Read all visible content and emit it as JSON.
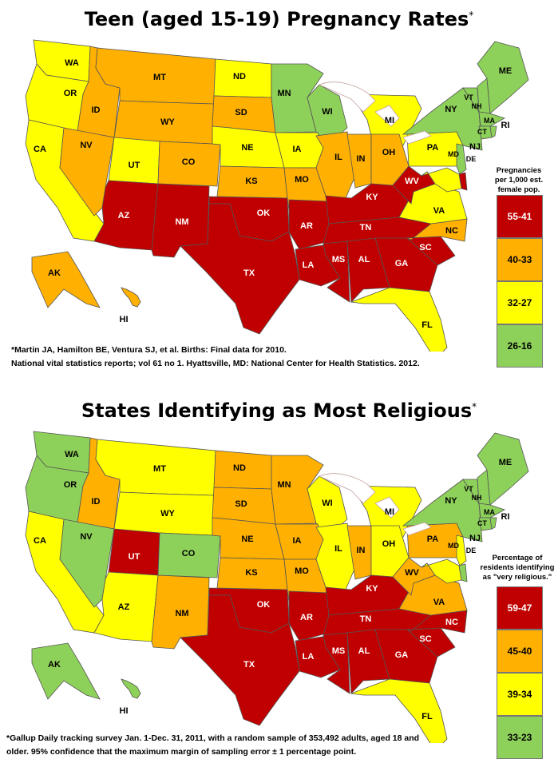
{
  "colors": {
    "red": "#C00000",
    "orange": "#FFB000",
    "yellow": "#FFFF00",
    "green": "#8ED15A",
    "border": "#555555",
    "lake": "#ffffff"
  },
  "map1": {
    "title": "Teen (aged 15-19) Pregnancy Rates",
    "title_mark": "*",
    "legend_caption": [
      "Pregnancies",
      "per 1,000 est.",
      "female pop."
    ],
    "legend": [
      {
        "label": "55-41",
        "color": "red"
      },
      {
        "label": "40-33",
        "color": "orange"
      },
      {
        "label": "32-27",
        "color": "yellow"
      },
      {
        "label": "26-16",
        "color": "green"
      }
    ],
    "footnote_line1": "*Martin JA, Hamilton BE, Ventura SJ, et al. Births: Final data for 2010.",
    "footnote_line2": "National vital statistics reports; vol 61 no 1. Hyattsville, MD: National Center for Health Statistics. 2012.",
    "states": {
      "WA": "yellow",
      "OR": "yellow",
      "CA": "yellow",
      "ID": "orange",
      "NV": "orange",
      "MT": "orange",
      "WY": "orange",
      "UT": "yellow",
      "CO": "orange",
      "AZ": "red",
      "NM": "red",
      "ND": "yellow",
      "SD": "orange",
      "NE": "yellow",
      "KS": "orange",
      "OK": "red",
      "TX": "red",
      "MN": "green",
      "IA": "yellow",
      "MO": "orange",
      "AR": "red",
      "LA": "red",
      "WI": "green",
      "IL": "orange",
      "IN": "orange",
      "MI": "yellow",
      "OH": "orange",
      "KY": "red",
      "TN": "red",
      "MS": "red",
      "AL": "red",
      "GA": "red",
      "FL": "yellow",
      "SC": "red",
      "NC": "orange",
      "VA": "yellow",
      "WV": "red",
      "PA": "yellow",
      "NY": "green",
      "VT": "green",
      "NH": "green",
      "ME": "green",
      "MA": "green",
      "CT": "green",
      "RI": "green",
      "NJ": "green",
      "DE": "red",
      "MD": "yellow",
      "AK": "orange",
      "HI": "orange"
    }
  },
  "map2": {
    "title": "States Identifying as Most Religious",
    "title_mark": "*",
    "legend_caption": [
      "Percentage of",
      "residents identifying",
      "as \"very religious.\""
    ],
    "legend": [
      {
        "label": "59-47",
        "color": "red"
      },
      {
        "label": "45-40",
        "color": "orange"
      },
      {
        "label": "39-34",
        "color": "yellow"
      },
      {
        "label": "33-23",
        "color": "green"
      }
    ],
    "footnote_line1": "*Gallup Daily tracking survey Jan. 1-Dec. 31, 2011, with a random sample of 353,492 adults, aged 18 and",
    "footnote_line2": "older.  95% confidence that the maximum margin of sampling error ± 1 percentage point.",
    "states": {
      "WA": "green",
      "OR": "green",
      "CA": "yellow",
      "ID": "orange",
      "NV": "green",
      "MT": "yellow",
      "WY": "yellow",
      "UT": "red",
      "CO": "green",
      "AZ": "yellow",
      "NM": "orange",
      "ND": "orange",
      "SD": "orange",
      "NE": "orange",
      "KS": "orange",
      "OK": "red",
      "TX": "red",
      "MN": "orange",
      "IA": "orange",
      "MO": "orange",
      "AR": "red",
      "LA": "red",
      "WI": "yellow",
      "IL": "yellow",
      "IN": "orange",
      "MI": "yellow",
      "OH": "yellow",
      "KY": "red",
      "TN": "red",
      "MS": "red",
      "AL": "red",
      "GA": "red",
      "FL": "yellow",
      "SC": "red",
      "NC": "red",
      "VA": "orange",
      "WV": "orange",
      "PA": "orange",
      "NY": "green",
      "VT": "green",
      "NH": "green",
      "ME": "green",
      "MA": "green",
      "CT": "green",
      "RI": "green",
      "NJ": "yellow",
      "DE": "green",
      "MD": "yellow",
      "AK": "green",
      "HI": "green"
    }
  },
  "labels": [
    "WA",
    "OR",
    "CA",
    "ID",
    "NV",
    "MT",
    "WY",
    "UT",
    "CO",
    "AZ",
    "NM",
    "ND",
    "SD",
    "NE",
    "KS",
    "OK",
    "TX",
    "MN",
    "IA",
    "MO",
    "AR",
    "LA",
    "WI",
    "IL",
    "IN",
    "MI",
    "OH",
    "KY",
    "TN",
    "MS",
    "AL",
    "GA",
    "FL",
    "SC",
    "NC",
    "VA",
    "WV",
    "PA",
    "NY",
    "VT",
    "NH",
    "ME",
    "MA",
    "CT",
    "RI",
    "NJ",
    "DE",
    "MD",
    "AK",
    "HI"
  ]
}
